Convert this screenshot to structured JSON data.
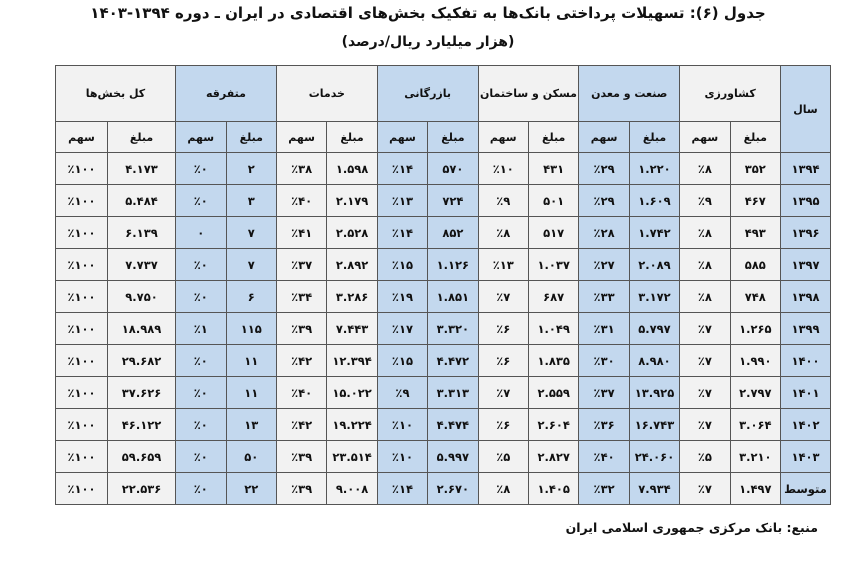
{
  "title": "جدول (۶): تسهیلات پرداختی بانک‌ها به تفکیک بخش‌های اقتصادی در ایران ـ دوره ۱۳۹۴-۱۴۰۳",
  "subtitle": "(هزار میلیارد ریال/درصد)",
  "table": {
    "year_header": "سال",
    "sectors": [
      "کشاورزی",
      "صنعت و معدن",
      "مسکن و ساختمان",
      "بازرگانی",
      "خدمات",
      "متفرقه",
      "کل بخش‌ها"
    ],
    "amount_label": "مبلغ",
    "share_label": "سهم",
    "rows": [
      [
        "۱۳۹۴",
        "۳۵۲",
        "٪۸",
        "۱.۲۲۰",
        "٪۲۹",
        "۴۳۱",
        "٪۱۰",
        "۵۷۰",
        "٪۱۴",
        "۱.۵۹۸",
        "٪۳۸",
        "۲",
        "٪۰",
        "۴.۱۷۳",
        "٪۱۰۰"
      ],
      [
        "۱۳۹۵",
        "۴۶۷",
        "٪۹",
        "۱.۶۰۹",
        "٪۲۹",
        "۵۰۱",
        "٪۹",
        "۷۲۴",
        "٪۱۳",
        "۲.۱۷۹",
        "٪۴۰",
        "۳",
        "٪۰",
        "۵.۴۸۴",
        "٪۱۰۰"
      ],
      [
        "۱۳۹۶",
        "۴۹۳",
        "٪۸",
        "۱.۷۴۲",
        "٪۲۸",
        "۵۱۷",
        "٪۸",
        "۸۵۲",
        "٪۱۴",
        "۲.۵۲۸",
        "٪۴۱",
        "۷",
        "۰",
        "۶.۱۳۹",
        "٪۱۰۰"
      ],
      [
        "۱۳۹۷",
        "۵۸۵",
        "٪۸",
        "۲.۰۸۹",
        "٪۲۷",
        "۱.۰۳۷",
        "٪۱۳",
        "۱.۱۲۶",
        "٪۱۵",
        "۲.۸۹۲",
        "٪۳۷",
        "۷",
        "٪۰",
        "۷.۷۳۷",
        "٪۱۰۰"
      ],
      [
        "۱۳۹۸",
        "۷۴۸",
        "٪۸",
        "۳.۱۷۲",
        "٪۳۳",
        "۶۸۷",
        "٪۷",
        "۱.۸۵۱",
        "٪۱۹",
        "۳.۲۸۶",
        "٪۳۴",
        "۶",
        "٪۰",
        "۹.۷۵۰",
        "٪۱۰۰"
      ],
      [
        "۱۳۹۹",
        "۱.۲۶۵",
        "٪۷",
        "۵.۷۹۷",
        "٪۳۱",
        "۱.۰۴۹",
        "٪۶",
        "۳.۳۲۰",
        "٪۱۷",
        "۷.۴۴۳",
        "٪۳۹",
        "۱۱۵",
        "٪۱",
        "۱۸.۹۸۹",
        "٪۱۰۰"
      ],
      [
        "۱۴۰۰",
        "۱.۹۹۰",
        "٪۷",
        "۸.۹۸۰",
        "٪۳۰",
        "۱.۸۳۵",
        "٪۶",
        "۴.۴۷۲",
        "٪۱۵",
        "۱۲.۳۹۴",
        "٪۴۲",
        "۱۱",
        "٪۰",
        "۲۹.۶۸۲",
        "٪۱۰۰"
      ],
      [
        "۱۴۰۱",
        "۲.۷۹۷",
        "٪۷",
        "۱۳.۹۲۵",
        "٪۳۷",
        "۲.۵۵۹",
        "٪۷",
        "۳.۳۱۳",
        "٪۹",
        "۱۵.۰۲۲",
        "٪۴۰",
        "۱۱",
        "٪۰",
        "۳۷.۶۲۶",
        "٪۱۰۰"
      ],
      [
        "۱۴۰۲",
        "۳.۰۶۴",
        "٪۷",
        "۱۶.۷۴۳",
        "٪۳۶",
        "۲.۶۰۴",
        "٪۶",
        "۴.۴۷۴",
        "٪۱۰",
        "۱۹.۲۲۴",
        "٪۴۲",
        "۱۳",
        "٪۰",
        "۴۶.۱۲۲",
        "٪۱۰۰"
      ],
      [
        "۱۴۰۳",
        "۳.۲۱۰",
        "٪۵",
        "۲۴.۰۶۰",
        "٪۴۰",
        "۲.۸۲۷",
        "٪۵",
        "۵.۹۹۷",
        "٪۱۰",
        "۲۳.۵۱۴",
        "٪۳۹",
        "۵۰",
        "٪۰",
        "۵۹.۶۵۹",
        "٪۱۰۰"
      ],
      [
        "متوسط",
        "۱.۴۹۷",
        "٪۷",
        "۷.۹۳۴",
        "٪۳۲",
        "۱.۴۰۵",
        "٪۸",
        "۲.۶۷۰",
        "٪۱۴",
        "۹.۰۰۸",
        "٪۳۹",
        "۲۲",
        "٪۰",
        "۲۲.۵۳۶",
        "٪۱۰۰"
      ]
    ]
  },
  "source": "منبع: بانک مرکزی جمهوری اسلامی ایران",
  "colors": {
    "blue_cell": "#c3d8ee",
    "gray_cell": "#f2f2f2"
  }
}
